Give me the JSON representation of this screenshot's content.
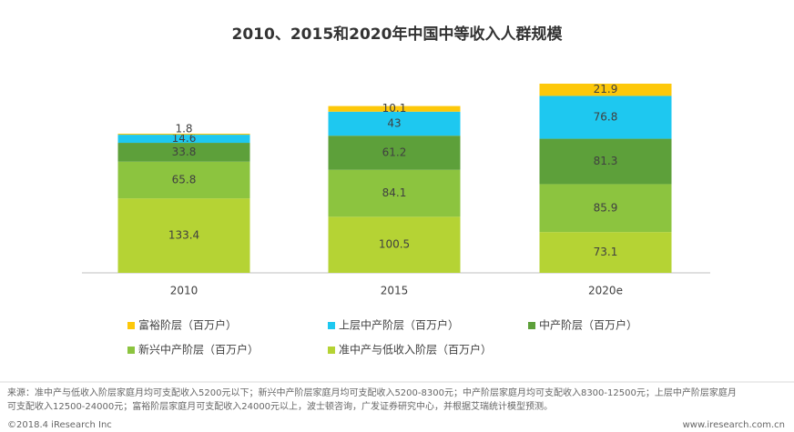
{
  "chart_data": {
    "type": "stacked-bar",
    "title": "2010、2015和2020年中国中等收入人群规模",
    "categories": [
      "2010",
      "2015",
      "2020e"
    ],
    "series": [
      {
        "name": "富裕阶层（百万户）",
        "color": "#fdc80a",
        "values": [
          1.8,
          10.1,
          21.9
        ]
      },
      {
        "name": "上层中产阶层（百万户）",
        "color": "#1ec8f0",
        "values": [
          14.6,
          43,
          76.8
        ]
      },
      {
        "name": "中产阶层（百万户）",
        "color": "#5da03a",
        "values": [
          33.8,
          61.2,
          81.3
        ]
      },
      {
        "name": "新兴中产阶层（百万户）",
        "color": "#8cc43f",
        "values": [
          65.8,
          84.1,
          85.9
        ]
      },
      {
        "name": "准中产与低收入阶层（百万户）",
        "color": "#b5d334",
        "values": [
          133.4,
          100.5,
          73.1
        ]
      }
    ]
  },
  "notes": {
    "source_lines": [
      "来源：准中产与低收入阶层家庭月均可支配收入5200元以下；新兴中产阶层家庭月均可支配收入5200-8300元；中产阶层家庭月均可支配收入8300-12500元；上层中产阶层家庭月",
      "可支配收入12500-24000元；富裕阶层家庭月可支配收入24000元以上，波士顿咨询，广发证券研究中心，并根据艾瑞统计模型预测。"
    ],
    "copyright": "©2018.4 iResearch Inc",
    "website": "www.iresearch.com.cn"
  }
}
